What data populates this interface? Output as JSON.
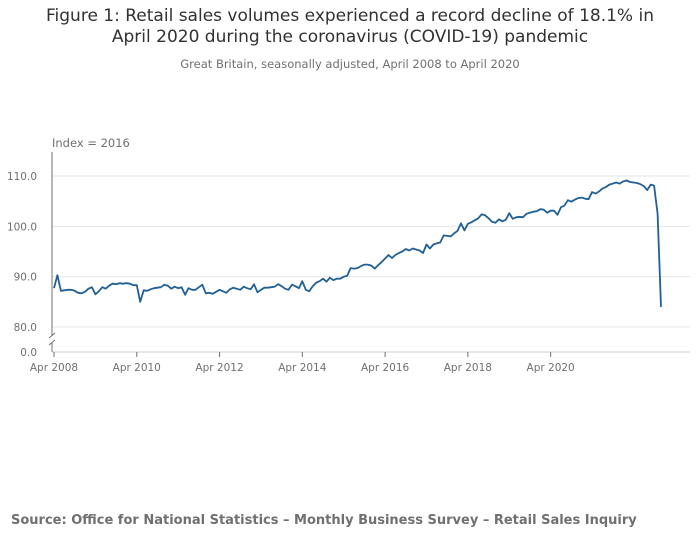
{
  "chart_data": {
    "type": "line",
    "title": "Figure 1: Retail sales volumes experienced a record decline of 18.1% in April 2020 during the coronavirus (COVID-19) pandemic",
    "title_lines": [
      "Figure 1: Retail sales volumes experienced a record decline of 18.1% in",
      "April 2020 during the coronavirus (COVID-19) pandemic"
    ],
    "subtitle": "Great Britain, seasonally adjusted, April 2008 to April 2020",
    "unit_label": "Index = 2016",
    "source": "Source: Office for National Statistics – Monthly Business Survey – Retail Sales Inquiry",
    "x_start": "Apr 2008",
    "x_end": "Apr 2020",
    "x_ticks": [
      "Apr 2008",
      "Apr 2010",
      "Apr 2012",
      "Apr 2014",
      "Apr 2016",
      "Apr 2018",
      "Apr 2020"
    ],
    "y_ticks": [
      "0.0",
      "80.0",
      "90.0",
      "100.0",
      "110.0"
    ],
    "y_axis_break": true,
    "ylim_broken": [
      80,
      115
    ],
    "grid": true,
    "line_color": "#206095",
    "series": [
      {
        "values": [
          87.7,
          90.3,
          87.2,
          87.3,
          87.4,
          87.4,
          87.2,
          86.8,
          86.7,
          87.0,
          87.6,
          87.9,
          86.5,
          87.1,
          87.9,
          87.6,
          88.2,
          88.6,
          88.5,
          88.7,
          88.6,
          88.7,
          88.6,
          88.3,
          88.3,
          85.0,
          87.3,
          87.2,
          87.5,
          87.7,
          87.8,
          87.9,
          88.4,
          88.2,
          87.6,
          88.0,
          87.7,
          87.9,
          86.4,
          87.7,
          87.4,
          87.4,
          87.9,
          88.4,
          86.7,
          86.8,
          86.6,
          87.0,
          87.4,
          87.1,
          86.8,
          87.5,
          87.8,
          87.6,
          87.4,
          88.0,
          87.7,
          87.5,
          88.5,
          86.9,
          87.4,
          87.8,
          87.8,
          87.9,
          88.0,
          88.5,
          88.1,
          87.6,
          87.4,
          88.4,
          88.1,
          87.7,
          89.1,
          87.4,
          87.1,
          88.1,
          88.8,
          89.1,
          89.6,
          89.0,
          89.8,
          89.3,
          89.6,
          89.6,
          90.0,
          90.2,
          91.7,
          91.6,
          91.7,
          92.1,
          92.4,
          92.4,
          92.2,
          91.6,
          92.3,
          92.9,
          93.6,
          94.3,
          93.7,
          94.3,
          94.7,
          95.0,
          95.5,
          95.2,
          95.6,
          95.4,
          95.2,
          94.7,
          96.4,
          95.6,
          96.4,
          96.6,
          96.8,
          98.2,
          98.1,
          98.0,
          98.6,
          99.1,
          100.6,
          99.2,
          100.5,
          100.8,
          101.2,
          101.6,
          102.4,
          102.2,
          101.6,
          100.9,
          100.7,
          101.4,
          101.0,
          101.3,
          102.6,
          101.5,
          101.8,
          101.9,
          101.8,
          102.5,
          102.7,
          102.9,
          103.0,
          103.4,
          103.3,
          102.7,
          103.1,
          103.1,
          102.3,
          103.8,
          104.1,
          105.2,
          104.9,
          105.3,
          105.6,
          105.7,
          105.5,
          105.4,
          106.8,
          106.5,
          106.9,
          107.5,
          107.8,
          108.3,
          108.5,
          108.7,
          108.5,
          108.9,
          109.1,
          108.8,
          108.7,
          108.6,
          108.4,
          108.0,
          107.2,
          108.3,
          108.1,
          102.5,
          84.0
        ]
      }
    ]
  }
}
